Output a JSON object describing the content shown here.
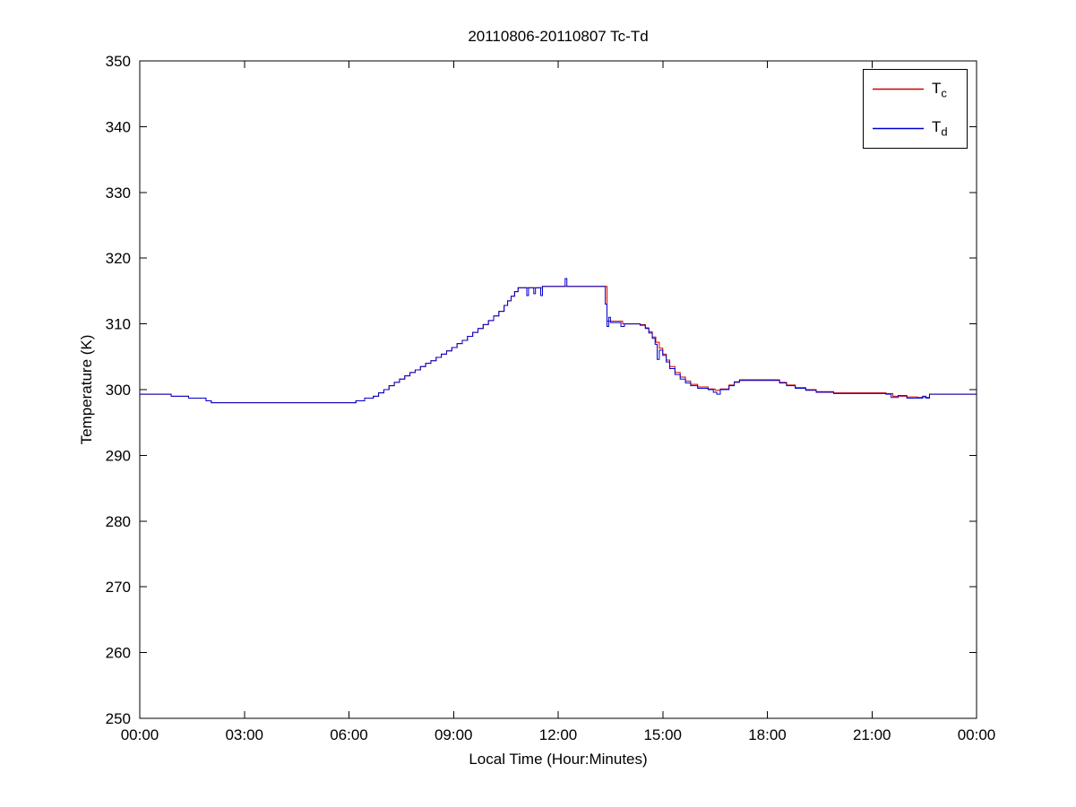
{
  "chart_data": {
    "type": "line",
    "title": "20110806-20110807 Tc-Td",
    "xlabel": "Local Time (Hour:Minutes)",
    "ylabel": "Temperature (K)",
    "xlim_hours": [
      0,
      24
    ],
    "ylim": [
      250,
      350
    ],
    "grid": false,
    "legend_position": "top-right",
    "interpolation": "step-post",
    "x_ticks": [
      {
        "hour": 0,
        "label": "00:00"
      },
      {
        "hour": 3,
        "label": "03:00"
      },
      {
        "hour": 6,
        "label": "06:00"
      },
      {
        "hour": 9,
        "label": "09:00"
      },
      {
        "hour": 12,
        "label": "12:00"
      },
      {
        "hour": 15,
        "label": "15:00"
      },
      {
        "hour": 18,
        "label": "18:00"
      },
      {
        "hour": 21,
        "label": "21:00"
      },
      {
        "hour": 24,
        "label": "00:00"
      }
    ],
    "y_ticks": [
      250,
      260,
      270,
      280,
      290,
      300,
      310,
      320,
      330,
      340,
      350
    ],
    "series": [
      {
        "name": "Tc",
        "legend_main": "T",
        "legend_sub": "c",
        "color": "#cc0000",
        "points": [
          [
            0.0,
            299.3
          ],
          [
            0.9,
            299.0
          ],
          [
            1.4,
            298.7
          ],
          [
            1.9,
            298.3
          ],
          [
            2.05,
            298.0
          ],
          [
            5.95,
            298.0
          ],
          [
            6.2,
            298.3
          ],
          [
            6.45,
            298.7
          ],
          [
            6.7,
            299.0
          ],
          [
            6.85,
            299.5
          ],
          [
            7.0,
            300.0
          ],
          [
            7.15,
            300.6
          ],
          [
            7.3,
            301.1
          ],
          [
            7.45,
            301.6
          ],
          [
            7.6,
            302.1
          ],
          [
            7.75,
            302.6
          ],
          [
            7.9,
            303.0
          ],
          [
            8.05,
            303.5
          ],
          [
            8.2,
            304.0
          ],
          [
            8.35,
            304.4
          ],
          [
            8.5,
            304.9
          ],
          [
            8.65,
            305.4
          ],
          [
            8.8,
            305.9
          ],
          [
            8.95,
            306.4
          ],
          [
            9.1,
            307.0
          ],
          [
            9.25,
            307.5
          ],
          [
            9.4,
            308.1
          ],
          [
            9.55,
            308.7
          ],
          [
            9.7,
            309.3
          ],
          [
            9.85,
            309.9
          ],
          [
            10.0,
            310.5
          ],
          [
            10.15,
            311.2
          ],
          [
            10.3,
            311.9
          ],
          [
            10.45,
            312.8
          ],
          [
            10.55,
            313.5
          ],
          [
            10.65,
            314.2
          ],
          [
            10.75,
            314.9
          ],
          [
            10.85,
            315.5
          ],
          [
            11.55,
            315.7
          ],
          [
            13.3,
            315.7
          ],
          [
            13.4,
            310.4
          ],
          [
            13.75,
            310.4
          ],
          [
            13.85,
            310.0
          ],
          [
            14.35,
            309.9
          ],
          [
            14.5,
            309.4
          ],
          [
            14.6,
            308.8
          ],
          [
            14.7,
            308.0
          ],
          [
            14.8,
            307.2
          ],
          [
            14.9,
            306.3
          ],
          [
            15.0,
            305.4
          ],
          [
            15.1,
            304.5
          ],
          [
            15.2,
            303.5
          ],
          [
            15.35,
            302.6
          ],
          [
            15.5,
            301.9
          ],
          [
            15.65,
            301.3
          ],
          [
            15.8,
            300.8
          ],
          [
            16.0,
            300.4
          ],
          [
            16.3,
            300.1
          ],
          [
            16.5,
            299.9
          ],
          [
            16.65,
            300.1
          ],
          [
            16.9,
            300.7
          ],
          [
            17.05,
            301.2
          ],
          [
            17.2,
            301.5
          ],
          [
            18.15,
            301.5
          ],
          [
            18.35,
            301.1
          ],
          [
            18.55,
            300.7
          ],
          [
            18.8,
            300.3
          ],
          [
            19.1,
            300.0
          ],
          [
            19.4,
            299.7
          ],
          [
            19.9,
            299.5
          ],
          [
            21.4,
            299.4
          ],
          [
            21.6,
            299.0
          ],
          [
            22.0,
            298.9
          ],
          [
            22.3,
            298.8
          ],
          [
            22.65,
            299.3
          ],
          [
            24.0,
            299.3
          ]
        ]
      },
      {
        "name": "Td",
        "legend_main": "T",
        "legend_sub": "d",
        "color": "#0000cc",
        "points": [
          [
            0.0,
            299.3
          ],
          [
            0.9,
            299.0
          ],
          [
            1.4,
            298.7
          ],
          [
            1.9,
            298.3
          ],
          [
            2.05,
            298.0
          ],
          [
            5.95,
            298.0
          ],
          [
            6.2,
            298.3
          ],
          [
            6.45,
            298.7
          ],
          [
            6.7,
            299.0
          ],
          [
            6.85,
            299.5
          ],
          [
            7.0,
            300.0
          ],
          [
            7.15,
            300.6
          ],
          [
            7.3,
            301.1
          ],
          [
            7.45,
            301.6
          ],
          [
            7.6,
            302.1
          ],
          [
            7.75,
            302.6
          ],
          [
            7.9,
            303.0
          ],
          [
            8.05,
            303.5
          ],
          [
            8.2,
            304.0
          ],
          [
            8.35,
            304.4
          ],
          [
            8.5,
            304.9
          ],
          [
            8.65,
            305.4
          ],
          [
            8.8,
            305.9
          ],
          [
            8.95,
            306.4
          ],
          [
            9.1,
            307.0
          ],
          [
            9.25,
            307.5
          ],
          [
            9.4,
            308.1
          ],
          [
            9.55,
            308.7
          ],
          [
            9.7,
            309.3
          ],
          [
            9.85,
            309.9
          ],
          [
            10.0,
            310.5
          ],
          [
            10.15,
            311.2
          ],
          [
            10.3,
            311.9
          ],
          [
            10.45,
            312.8
          ],
          [
            10.55,
            313.5
          ],
          [
            10.65,
            314.2
          ],
          [
            10.75,
            314.9
          ],
          [
            10.85,
            315.5
          ],
          [
            11.1,
            314.3
          ],
          [
            11.15,
            315.5
          ],
          [
            11.3,
            314.6
          ],
          [
            11.35,
            315.5
          ],
          [
            11.5,
            314.3
          ],
          [
            11.55,
            315.7
          ],
          [
            12.15,
            315.7
          ],
          [
            12.2,
            316.9
          ],
          [
            12.25,
            315.7
          ],
          [
            13.3,
            315.7
          ],
          [
            13.35,
            313.0
          ],
          [
            13.4,
            309.6
          ],
          [
            13.45,
            311.0
          ],
          [
            13.5,
            310.2
          ],
          [
            13.75,
            310.2
          ],
          [
            13.8,
            309.6
          ],
          [
            13.9,
            310.0
          ],
          [
            14.35,
            309.8
          ],
          [
            14.5,
            309.3
          ],
          [
            14.6,
            308.6
          ],
          [
            14.7,
            307.8
          ],
          [
            14.78,
            306.9
          ],
          [
            14.84,
            304.6
          ],
          [
            14.9,
            306.0
          ],
          [
            15.0,
            305.2
          ],
          [
            15.1,
            304.2
          ],
          [
            15.2,
            303.2
          ],
          [
            15.35,
            302.3
          ],
          [
            15.5,
            301.6
          ],
          [
            15.65,
            301.0
          ],
          [
            15.8,
            300.6
          ],
          [
            16.0,
            300.2
          ],
          [
            16.3,
            300.0
          ],
          [
            16.45,
            299.6
          ],
          [
            16.55,
            299.3
          ],
          [
            16.65,
            300.0
          ],
          [
            16.9,
            300.6
          ],
          [
            17.05,
            301.1
          ],
          [
            17.2,
            301.4
          ],
          [
            18.15,
            301.4
          ],
          [
            18.35,
            301.0
          ],
          [
            18.55,
            300.6
          ],
          [
            18.8,
            300.2
          ],
          [
            19.1,
            299.9
          ],
          [
            19.4,
            299.6
          ],
          [
            19.9,
            299.4
          ],
          [
            21.4,
            299.3
          ],
          [
            21.55,
            298.8
          ],
          [
            21.75,
            299.1
          ],
          [
            22.0,
            298.7
          ],
          [
            22.3,
            298.7
          ],
          [
            22.45,
            299.0
          ],
          [
            22.55,
            298.7
          ],
          [
            22.65,
            299.3
          ],
          [
            24.0,
            299.3
          ]
        ]
      }
    ]
  }
}
